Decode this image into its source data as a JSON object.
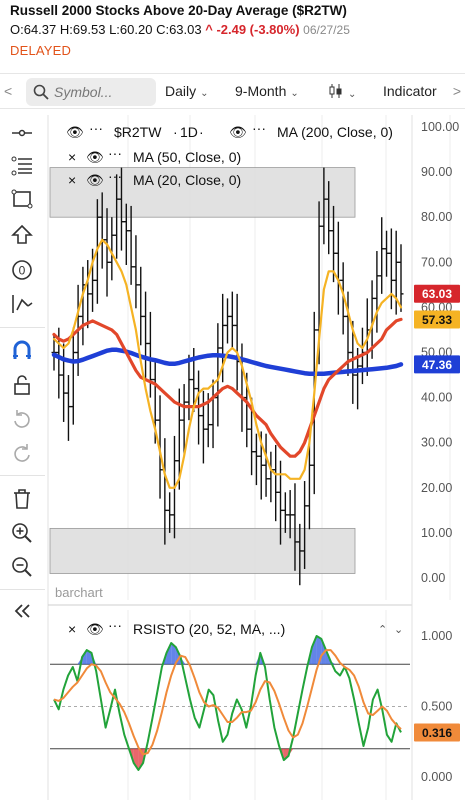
{
  "header": {
    "title": "Russell 2000 Stocks Above 20-Day Average ($R2TW)",
    "ohlc_open": "O:64.37",
    "ohlc_high": "H:69.53",
    "ohlc_low": "L:60.20",
    "ohlc_close": "C:63.03",
    "change": "^ -2.49 (-3.80%)",
    "date": "06/27/25",
    "status": "DELAYED"
  },
  "toolbar": {
    "left_arrow": "<",
    "search_placeholder": "Symbol...",
    "period": "Daily",
    "range": "9-Month",
    "indicators": "Indicator",
    "right_arrow": ">"
  },
  "side_tools": [
    "crosshair-icon",
    "fib-icon",
    "rectangle-icon",
    "arrow-up-icon",
    "circle-zero-icon",
    "path-icon",
    "magnet-icon",
    "lock-icon",
    "undo-icon",
    "redo-icon",
    "trash-icon",
    "zoom-in-icon",
    "zoom-out-icon",
    "collapse-icon"
  ],
  "legend": {
    "symbol": "$R2TW",
    "interval": "1D",
    "ma200": "MA (200, Close, 0)",
    "ma50": "MA (50, Close, 0)",
    "ma20": "MA (20, Close, 0)",
    "rsisto": "RSISTO (20, 52, MA, ...)"
  },
  "watermark": "barchart",
  "colors": {
    "price": "#111111",
    "ma200": "#1f3fd6",
    "ma50": "#e2472a",
    "ma20": "#f5b324",
    "rsi_line": "#22a33a",
    "rsi_signal": "#f08a3a",
    "rsi_overbought_fill": "#2f5be0",
    "rsi_oversold_fill": "#e0262c",
    "band_fill": "#dcdcdc"
  },
  "chart_data": [
    {
      "type": "line",
      "title": "Russell 2000 Stocks Above 20-Day Average ($R2TW)",
      "y_ticks": [
        "100.00",
        "90.00",
        "80.00",
        "70.00",
        "60.00",
        "50.00",
        "40.00",
        "30.00",
        "20.00",
        "10.00",
        "0.00"
      ],
      "ylim": [
        0,
        100
      ],
      "shaded_bands": [
        [
          80,
          91
        ],
        [
          1,
          11
        ]
      ],
      "series": [
        {
          "name": "$R2TW",
          "values": [
            50,
            45,
            41,
            38,
            50,
            58,
            65,
            63,
            66,
            80,
            75,
            70,
            76,
            84,
            79,
            77,
            69,
            65,
            58,
            52,
            44,
            35,
            24,
            15,
            14,
            26,
            35,
            39,
            44,
            42,
            36,
            33,
            34,
            40,
            51,
            56,
            58,
            56,
            48,
            40,
            33,
            28,
            27,
            25,
            22,
            24,
            19,
            15,
            14,
            14,
            8,
            6,
            16,
            25,
            55,
            78,
            84,
            77,
            72,
            66,
            58,
            50,
            45,
            47,
            50,
            55,
            62,
            67,
            73,
            72,
            66,
            70,
            63
          ]
        },
        {
          "name": "MA (200, Close, 0)",
          "values": [
            49.5,
            49.0,
            48.5,
            48.2,
            48.0,
            48.1,
            48.4,
            48.8,
            49.2,
            49.6,
            50.0,
            50.4,
            50.6,
            50.6,
            50.4,
            50.2,
            49.9,
            49.5,
            49.1,
            48.8,
            48.5,
            48.3,
            48.0,
            47.7,
            47.5,
            47.5,
            47.7,
            48.0,
            48.3,
            48.6,
            48.9,
            49.1,
            49.3,
            49.4,
            49.4,
            49.3,
            49.2,
            49.0,
            48.8,
            48.5,
            48.2,
            47.9,
            47.6,
            47.3,
            47.0,
            46.8,
            46.6,
            46.4,
            46.2,
            46.0,
            45.8,
            45.6,
            45.4,
            45.3,
            45.3,
            45.3,
            45.3,
            45.4,
            45.5,
            45.6,
            45.7,
            45.8,
            45.9,
            46.0,
            46.1,
            46.2,
            46.3,
            46.4,
            46.5,
            46.6,
            46.8,
            47.0,
            47.36
          ]
        },
        {
          "name": "MA (50, Close, 0)",
          "values": [
            54,
            53,
            52.5,
            53,
            54,
            55,
            56,
            56.5,
            57,
            56.5,
            56,
            55.5,
            55,
            54,
            52,
            50,
            48,
            46,
            44.5,
            44,
            43.5,
            43,
            42,
            41,
            40,
            39,
            38.5,
            38,
            38,
            38,
            38,
            38.5,
            39,
            40,
            41,
            42,
            42.5,
            42,
            41,
            40,
            39,
            37.5,
            36,
            35,
            34,
            32,
            30.5,
            29,
            28,
            27,
            27,
            28,
            30,
            33,
            36,
            39,
            42,
            44,
            45,
            46,
            47,
            48,
            48.5,
            49,
            49.5,
            50,
            51,
            52,
            53,
            55,
            56,
            57,
            57.33
          ]
        },
        {
          "name": "MA (20, Close, 0)",
          "values": [
            53,
            52,
            51,
            52,
            55,
            59,
            63,
            66,
            70,
            73,
            75,
            74,
            72,
            70,
            68,
            65,
            60,
            55,
            48,
            42,
            37,
            33,
            28,
            23,
            20,
            20,
            22,
            27,
            33,
            38,
            41,
            42,
            42,
            43,
            44,
            47,
            50,
            51,
            50,
            47,
            43,
            39,
            34,
            30,
            27,
            24,
            23,
            23,
            23,
            22,
            22,
            22,
            24,
            30,
            41,
            53,
            64,
            68,
            68,
            66,
            63,
            59,
            55,
            52,
            51,
            53,
            56,
            59,
            61,
            62,
            63,
            62,
            60
          ]
        }
      ],
      "price_labels": [
        "63.03",
        "57.33",
        "47.36"
      ]
    },
    {
      "type": "line",
      "title": "RSISTO (20, 52, MA, ...)",
      "y_ticks": [
        "1.000",
        "0.500",
        "0.000"
      ],
      "ylim": [
        0,
        1
      ],
      "reference_lines": [
        0.8,
        0.5,
        0.2
      ],
      "series": [
        {
          "name": "RSISTO",
          "values": [
            0.55,
            0.48,
            0.62,
            0.72,
            0.78,
            0.68,
            0.85,
            0.9,
            0.88,
            0.75,
            0.55,
            0.35,
            0.48,
            0.62,
            0.45,
            0.3,
            0.2,
            0.1,
            0.05,
            0.1,
            0.25,
            0.42,
            0.6,
            0.78,
            0.88,
            0.95,
            0.92,
            0.85,
            0.7,
            0.55,
            0.42,
            0.35,
            0.48,
            0.62,
            0.58,
            0.4,
            0.25,
            0.3,
            0.45,
            0.55,
            0.48,
            0.35,
            0.5,
            0.72,
            0.88,
            0.78,
            0.55,
            0.35,
            0.22,
            0.12,
            0.15,
            0.28,
            0.45,
            0.62,
            0.78,
            0.92,
            1.0,
            0.98,
            0.9,
            0.82,
            0.75,
            0.72,
            0.78,
            0.7,
            0.55,
            0.38,
            0.22,
            0.35,
            0.55,
            0.62,
            0.48,
            0.3,
            0.25,
            0.38,
            0.316
          ]
        },
        {
          "name": "Signal",
          "values": [
            0.55,
            0.54,
            0.56,
            0.6,
            0.64,
            0.67,
            0.72,
            0.77,
            0.8,
            0.79,
            0.75,
            0.67,
            0.6,
            0.56,
            0.52,
            0.46,
            0.38,
            0.29,
            0.21,
            0.16,
            0.17,
            0.23,
            0.33,
            0.46,
            0.6,
            0.72,
            0.81,
            0.86,
            0.85,
            0.79,
            0.7,
            0.6,
            0.53,
            0.5,
            0.51,
            0.49,
            0.44,
            0.39,
            0.39,
            0.42,
            0.46,
            0.46,
            0.47,
            0.53,
            0.62,
            0.68,
            0.67,
            0.61,
            0.52,
            0.42,
            0.33,
            0.28,
            0.3,
            0.38,
            0.5,
            0.63,
            0.76,
            0.86,
            0.9,
            0.9,
            0.86,
            0.81,
            0.78,
            0.76,
            0.72,
            0.64,
            0.53,
            0.45,
            0.44,
            0.47,
            0.5,
            0.47,
            0.41,
            0.37,
            0.34
          ]
        }
      ],
      "price_labels": [
        "0.316"
      ]
    }
  ]
}
